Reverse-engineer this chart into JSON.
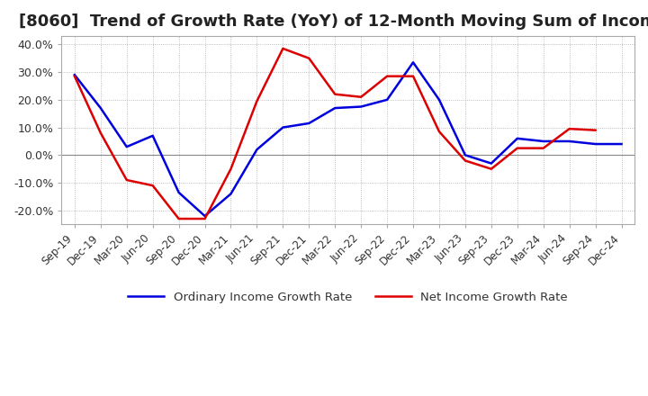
{
  "title": "[8060]  Trend of Growth Rate (YoY) of 12-Month Moving Sum of Incomes",
  "title_fontsize": 13,
  "ylim": [
    -0.25,
    0.43
  ],
  "yticks": [
    -0.2,
    -0.1,
    0.0,
    0.1,
    0.2,
    0.3,
    0.4
  ],
  "ytick_labels": [
    "-20.0%",
    "-10.0%",
    "0.0%",
    "10.0%",
    "20.0%",
    "30.0%",
    "40.0%"
  ],
  "x_labels": [
    "Sep-19",
    "Dec-19",
    "Mar-20",
    "Jun-20",
    "Sep-20",
    "Dec-20",
    "Mar-21",
    "Jun-21",
    "Sep-21",
    "Dec-21",
    "Mar-22",
    "Jun-22",
    "Sep-22",
    "Dec-22",
    "Mar-23",
    "Jun-23",
    "Sep-23",
    "Dec-23",
    "Mar-24",
    "Jun-24",
    "Sep-24",
    "Dec-24"
  ],
  "ordinary_income": [
    0.29,
    0.17,
    0.03,
    0.07,
    -0.135,
    -0.22,
    -0.14,
    0.02,
    0.1,
    0.115,
    0.17,
    0.175,
    0.2,
    0.335,
    0.2,
    0.0,
    -0.03,
    0.06,
    0.05,
    0.05,
    0.04,
    0.04
  ],
  "net_income": [
    0.285,
    0.08,
    -0.09,
    -0.11,
    -0.23,
    -0.23,
    -0.05,
    0.195,
    0.385,
    0.35,
    0.22,
    0.21,
    0.285,
    0.285,
    0.085,
    -0.02,
    -0.05,
    0.025,
    0.025,
    0.095,
    0.09,
    null
  ],
  "ordinary_color": "#0000dd",
  "net_color": "#dd0000",
  "legend_labels": [
    "Ordinary Income Growth Rate",
    "Net Income Growth Rate"
  ],
  "background_color": "#ffffff",
  "grid_color": "#aaaaaa",
  "line_width": 1.8
}
